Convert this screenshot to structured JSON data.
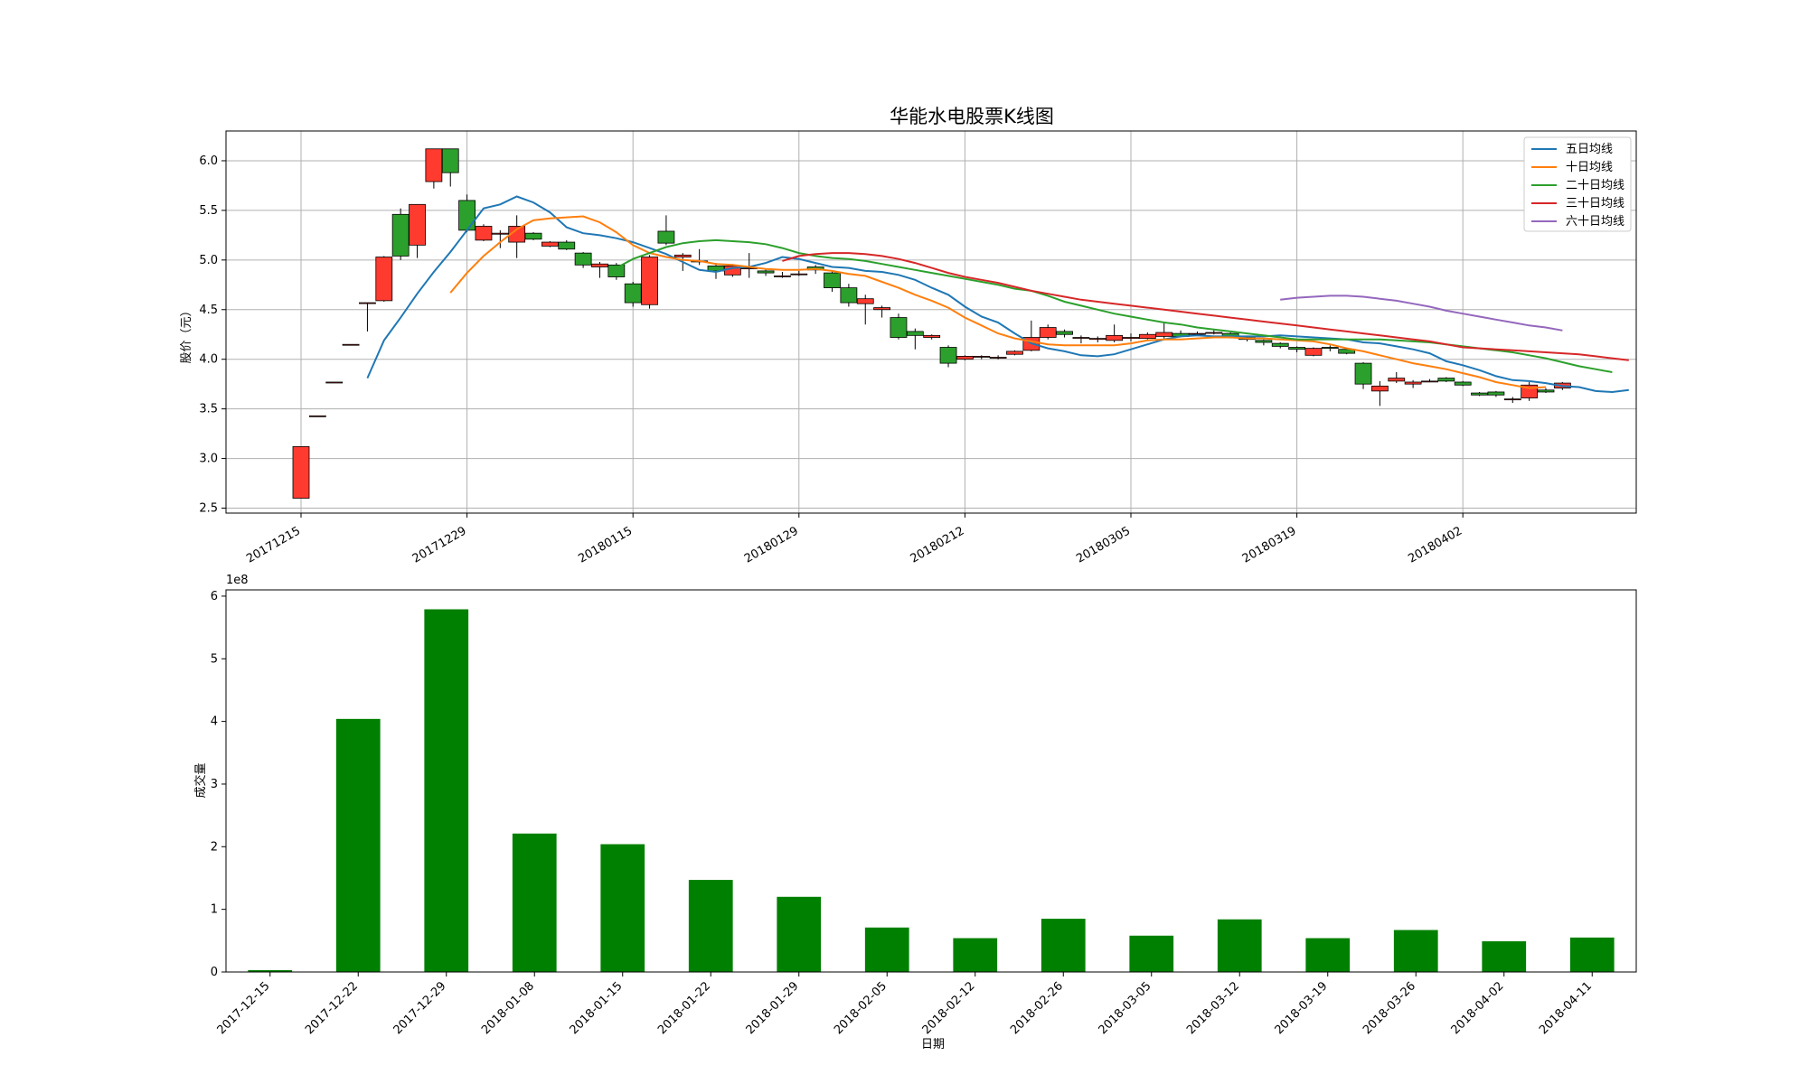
{
  "chart_data": [
    {
      "type": "candlestick",
      "title": "华能水电股票K线图",
      "ylabel": "股价（元）",
      "ylim": [
        2.45,
        6.3
      ],
      "yticks": [
        "2.5",
        "3.0",
        "3.5",
        "4.0",
        "4.5",
        "5.0",
        "5.5",
        "6.0"
      ],
      "xtick_labels": [
        "20171215",
        "20171229",
        "20180115",
        "20180129",
        "20180212",
        "20180305",
        "20180319",
        "20180402"
      ],
      "grid": true,
      "up_color": "#ff3b30",
      "down_color": "#2ca02c",
      "legend_position": "top-right",
      "candles": [
        {
          "o": 2.6,
          "c": 3.12,
          "h": 3.12,
          "l": 2.6
        },
        {
          "o": 3.43,
          "c": 3.43,
          "h": 3.43,
          "l": 3.43
        },
        {
          "o": 3.77,
          "c": 3.77,
          "h": 3.77,
          "l": 3.77
        },
        {
          "o": 4.15,
          "c": 4.15,
          "h": 4.15,
          "l": 4.15
        },
        {
          "o": 4.57,
          "c": 4.57,
          "h": 4.57,
          "l": 4.28
        },
        {
          "o": 4.59,
          "c": 5.03,
          "h": 5.04,
          "l": 4.58
        },
        {
          "o": 5.46,
          "c": 5.04,
          "h": 5.52,
          "l": 5.0
        },
        {
          "o": 5.15,
          "c": 5.56,
          "h": 5.56,
          "l": 5.02
        },
        {
          "o": 5.79,
          "c": 6.12,
          "h": 6.12,
          "l": 5.72
        },
        {
          "o": 6.12,
          "c": 5.88,
          "h": 6.12,
          "l": 5.74
        },
        {
          "o": 5.6,
          "c": 5.3,
          "h": 5.66,
          "l": 5.28
        },
        {
          "o": 5.2,
          "c": 5.34,
          "h": 5.36,
          "l": 5.19
        },
        {
          "o": 5.26,
          "c": 5.27,
          "h": 5.3,
          "l": 5.12
        },
        {
          "o": 5.18,
          "c": 5.34,
          "h": 5.45,
          "l": 5.02
        },
        {
          "o": 5.27,
          "c": 5.21,
          "h": 5.28,
          "l": 5.2
        },
        {
          "o": 5.14,
          "c": 5.18,
          "h": 5.19,
          "l": 5.13
        },
        {
          "o": 5.18,
          "c": 5.11,
          "h": 5.2,
          "l": 5.1
        },
        {
          "o": 5.07,
          "c": 4.95,
          "h": 5.08,
          "l": 4.92
        },
        {
          "o": 4.93,
          "c": 4.96,
          "h": 4.98,
          "l": 4.82
        },
        {
          "o": 4.95,
          "c": 4.83,
          "h": 4.97,
          "l": 4.8
        },
        {
          "o": 4.76,
          "c": 4.57,
          "h": 4.78,
          "l": 4.53
        },
        {
          "o": 4.55,
          "c": 5.03,
          "h": 5.05,
          "l": 4.51
        },
        {
          "o": 5.29,
          "c": 5.17,
          "h": 5.45,
          "l": 5.15
        },
        {
          "o": 5.03,
          "c": 5.05,
          "h": 5.07,
          "l": 4.89
        },
        {
          "o": 4.99,
          "c": 4.99,
          "h": 5.11,
          "l": 4.95
        },
        {
          "o": 4.94,
          "c": 4.89,
          "h": 4.97,
          "l": 4.81
        },
        {
          "o": 4.85,
          "c": 4.94,
          "h": 4.96,
          "l": 4.83
        },
        {
          "o": 4.92,
          "c": 4.92,
          "h": 5.07,
          "l": 4.82
        },
        {
          "o": 4.89,
          "c": 4.87,
          "h": 4.91,
          "l": 4.84
        },
        {
          "o": 4.84,
          "c": 4.84,
          "h": 4.88,
          "l": 4.82
        },
        {
          "o": 4.86,
          "c": 4.86,
          "h": 4.89,
          "l": 4.84
        },
        {
          "o": 4.93,
          "c": 4.9,
          "h": 4.95,
          "l": 4.86
        },
        {
          "o": 4.87,
          "c": 4.72,
          "h": 4.89,
          "l": 4.68
        },
        {
          "o": 4.72,
          "c": 4.57,
          "h": 4.76,
          "l": 4.53
        },
        {
          "o": 4.56,
          "c": 4.61,
          "h": 4.65,
          "l": 4.35
        },
        {
          "o": 4.5,
          "c": 4.52,
          "h": 4.54,
          "l": 4.42
        },
        {
          "o": 4.42,
          "c": 4.22,
          "h": 4.46,
          "l": 4.2
        },
        {
          "o": 4.28,
          "c": 4.24,
          "h": 4.31,
          "l": 4.1
        },
        {
          "o": 4.22,
          "c": 4.24,
          "h": 4.25,
          "l": 4.2
        },
        {
          "o": 4.12,
          "c": 3.96,
          "h": 4.14,
          "l": 3.92
        },
        {
          "o": 4.0,
          "c": 4.03,
          "h": 4.04,
          "l": 3.99
        },
        {
          "o": 4.03,
          "c": 4.03,
          "h": 4.04,
          "l": 4.0
        },
        {
          "o": 4.02,
          "c": 4.02,
          "h": 4.04,
          "l": 4.0
        },
        {
          "o": 4.05,
          "c": 4.08,
          "h": 4.09,
          "l": 4.04
        },
        {
          "o": 4.09,
          "c": 4.22,
          "h": 4.39,
          "l": 4.08
        },
        {
          "o": 4.22,
          "c": 4.32,
          "h": 4.35,
          "l": 4.2
        },
        {
          "o": 4.28,
          "c": 4.25,
          "h": 4.3,
          "l": 4.22
        },
        {
          "o": 4.22,
          "c": 4.22,
          "h": 4.24,
          "l": 4.16
        },
        {
          "o": 4.2,
          "c": 4.21,
          "h": 4.23,
          "l": 4.17
        },
        {
          "o": 4.19,
          "c": 4.24,
          "h": 4.35,
          "l": 4.17
        },
        {
          "o": 4.21,
          "c": 4.22,
          "h": 4.26,
          "l": 4.18
        },
        {
          "o": 4.21,
          "c": 4.25,
          "h": 4.27,
          "l": 4.2
        },
        {
          "o": 4.23,
          "c": 4.27,
          "h": 4.38,
          "l": 4.21
        },
        {
          "o": 4.26,
          "c": 4.23,
          "h": 4.29,
          "l": 4.22
        },
        {
          "o": 4.26,
          "c": 4.26,
          "h": 4.28,
          "l": 4.24
        },
        {
          "o": 4.27,
          "c": 4.27,
          "h": 4.3,
          "l": 4.25
        },
        {
          "o": 4.26,
          "c": 4.22,
          "h": 4.27,
          "l": 4.21
        },
        {
          "o": 4.22,
          "c": 4.2,
          "h": 4.23,
          "l": 4.18
        },
        {
          "o": 4.19,
          "c": 4.17,
          "h": 4.2,
          "l": 4.14
        },
        {
          "o": 4.16,
          "c": 4.13,
          "h": 4.17,
          "l": 4.11
        },
        {
          "o": 4.12,
          "c": 4.1,
          "h": 4.13,
          "l": 4.07
        },
        {
          "o": 4.04,
          "c": 4.11,
          "h": 4.12,
          "l": 4.03
        },
        {
          "o": 4.12,
          "c": 4.11,
          "h": 4.14,
          "l": 4.08
        },
        {
          "o": 4.1,
          "c": 4.06,
          "h": 4.11,
          "l": 4.05
        },
        {
          "o": 3.96,
          "c": 3.75,
          "h": 3.97,
          "l": 3.7
        },
        {
          "o": 3.68,
          "c": 3.73,
          "h": 3.78,
          "l": 3.53
        },
        {
          "o": 3.78,
          "c": 3.81,
          "h": 3.87,
          "l": 3.76
        },
        {
          "o": 3.75,
          "c": 3.77,
          "h": 3.79,
          "l": 3.71
        },
        {
          "o": 3.78,
          "c": 3.78,
          "h": 3.8,
          "l": 3.77
        },
        {
          "o": 3.81,
          "c": 3.78,
          "h": 3.82,
          "l": 3.77
        },
        {
          "o": 3.77,
          "c": 3.74,
          "h": 3.78,
          "l": 3.73
        },
        {
          "o": 3.66,
          "c": 3.64,
          "h": 3.67,
          "l": 3.63
        },
        {
          "o": 3.67,
          "c": 3.64,
          "h": 3.68,
          "l": 3.62
        },
        {
          "o": 3.6,
          "c": 3.6,
          "h": 3.62,
          "l": 3.56
        },
        {
          "o": 3.61,
          "c": 3.74,
          "h": 3.77,
          "l": 3.58
        },
        {
          "o": 3.69,
          "c": 3.67,
          "h": 3.71,
          "l": 3.66
        },
        {
          "o": 3.71,
          "c": 3.76,
          "h": 3.77,
          "l": 3.69
        }
      ],
      "series": [
        {
          "name": "五日均线",
          "color": "#1f77b4",
          "start": 4,
          "values": [
            3.81,
            4.19,
            4.42,
            4.66,
            4.88,
            5.08,
            5.3,
            5.52,
            5.56,
            5.64,
            5.58,
            5.48,
            5.33,
            5.27,
            5.25,
            5.22,
            5.18,
            5.12,
            5.06,
            4.98,
            4.9,
            4.88,
            4.92,
            4.93,
            4.97,
            5.03,
            5.01,
            4.97,
            4.93,
            4.92,
            4.89,
            4.88,
            4.85,
            4.8,
            4.72,
            4.65,
            4.53,
            4.43,
            4.37,
            4.26,
            4.16,
            4.11,
            4.08,
            4.04,
            4.03,
            4.05,
            4.1,
            4.15,
            4.2,
            4.23,
            4.24,
            4.23,
            4.23,
            4.23,
            4.23,
            4.24,
            4.23,
            4.22,
            4.21,
            4.2,
            4.17,
            4.16,
            4.13,
            4.1,
            4.06,
            3.98,
            3.94,
            3.89,
            3.83,
            3.79,
            3.78,
            3.76,
            3.73,
            3.72,
            3.68,
            3.67,
            3.69
          ]
        },
        {
          "name": "十日均线",
          "color": "#ff7f0e",
          "start": 9,
          "values": [
            4.67,
            4.87,
            5.04,
            5.18,
            5.31,
            5.4,
            5.42,
            5.43,
            5.44,
            5.38,
            5.28,
            5.15,
            5.07,
            5.03,
            5.0,
            4.99,
            4.96,
            4.95,
            4.93,
            4.91,
            4.9,
            4.9,
            4.91,
            4.89,
            4.86,
            4.84,
            4.78,
            4.72,
            4.65,
            4.59,
            4.52,
            4.42,
            4.34,
            4.26,
            4.21,
            4.18,
            4.15,
            4.14,
            4.14,
            4.14,
            4.14,
            4.16,
            4.19,
            4.2,
            4.2,
            4.21,
            4.22,
            4.22,
            4.21,
            4.21,
            4.2,
            4.19,
            4.18,
            4.15,
            4.11,
            4.08,
            4.04,
            4.0,
            3.96,
            3.93,
            3.9,
            3.86,
            3.82,
            3.77,
            3.74,
            3.71,
            3.72
          ]
        },
        {
          "name": "二十日均线",
          "color": "#2ca02c",
          "start": 19,
          "values": [
            4.92,
            5.01,
            5.07,
            5.13,
            5.17,
            5.19,
            5.2,
            5.19,
            5.18,
            5.16,
            5.12,
            5.07,
            5.04,
            5.02,
            5.01,
            4.99,
            4.96,
            4.93,
            4.9,
            4.87,
            4.84,
            4.81,
            4.78,
            4.75,
            4.71,
            4.69,
            4.64,
            4.58,
            4.54,
            4.5,
            4.46,
            4.43,
            4.4,
            4.37,
            4.35,
            4.32,
            4.3,
            4.28,
            4.26,
            4.24,
            4.22,
            4.2,
            4.2,
            4.2,
            4.2,
            4.2,
            4.2,
            4.19,
            4.18,
            4.17,
            4.15,
            4.13,
            4.11,
            4.09,
            4.07,
            4.04,
            4.01,
            3.97,
            3.93,
            3.9,
            3.87
          ]
        },
        {
          "name": "三十日均线",
          "color": "#d62728",
          "start": 29,
          "values": [
            4.99,
            5.04,
            5.06,
            5.07,
            5.07,
            5.06,
            5.04,
            5.01,
            4.97,
            4.92,
            4.87,
            4.83,
            4.8,
            4.77,
            4.73,
            4.69,
            4.66,
            4.63,
            4.6,
            4.58,
            4.56,
            4.54,
            4.52,
            4.5,
            4.48,
            4.46,
            4.44,
            4.42,
            4.4,
            4.38,
            4.36,
            4.34,
            4.32,
            4.3,
            4.28,
            4.26,
            4.24,
            4.22,
            4.2,
            4.18,
            4.15,
            4.12,
            4.11,
            4.1,
            4.09,
            4.08,
            4.07,
            4.06,
            4.05,
            4.03,
            4.01,
            3.99
          ]
        },
        {
          "name": "六十日均线",
          "color": "#9467bd",
          "start": 59,
          "values": [
            4.6,
            4.62,
            4.63,
            4.64,
            4.64,
            4.63,
            4.61,
            4.59,
            4.56,
            4.53,
            4.49,
            4.46,
            4.43,
            4.4,
            4.37,
            4.34,
            4.32,
            4.29
          ]
        }
      ]
    },
    {
      "type": "bar",
      "xlabel": "日期",
      "ylabel": "成交量",
      "exponent_label": "1e8",
      "ylim": [
        0,
        6.1
      ],
      "yticks": [
        "0",
        "1",
        "2",
        "3",
        "4",
        "5",
        "6"
      ],
      "color": "#008000",
      "categories": [
        "2017-12-15",
        "2017-12-22",
        "2017-12-29",
        "2018-01-08",
        "2018-01-15",
        "2018-01-22",
        "2018-01-29",
        "2018-02-05",
        "2018-02-12",
        "2018-02-26",
        "2018-03-05",
        "2018-03-12",
        "2018-03-19",
        "2018-03-26",
        "2018-04-02",
        "2018-04-11"
      ],
      "values": [
        0.03,
        4.04,
        5.79,
        2.21,
        2.04,
        1.47,
        1.2,
        0.71,
        0.54,
        0.85,
        0.58,
        0.84,
        0.54,
        0.67,
        0.49,
        0.55
      ]
    }
  ]
}
